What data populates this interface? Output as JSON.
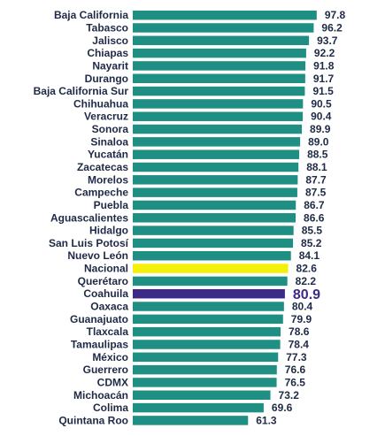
{
  "chart_data": {
    "type": "bar",
    "orientation": "horizontal",
    "title": "",
    "xlabel": "",
    "ylabel": "",
    "xlim": [
      0,
      100
    ],
    "grid": false,
    "categories": [
      "Baja California",
      "Tabasco",
      "Jalisco",
      "Chiapas",
      "Nayarit",
      "Durango",
      "Baja California Sur",
      "Chihuahua",
      "Veracruz",
      "Sonora",
      "Sinaloa",
      "Yucatán",
      "Zacatecas",
      "Morelos",
      "Campeche",
      "Puebla",
      "Aguascalientes",
      "Hidalgo",
      "San Luis Potosí",
      "Nuevo León",
      "Nacional",
      "Querétaro",
      "Coahuila",
      "Oaxaca",
      "Guanajuato",
      "Tlaxcala",
      "Tamaulipas",
      "México",
      "Guerrero",
      "CDMX",
      "Michoacán",
      "Colima",
      "Quintana Roo"
    ],
    "values": [
      97.8,
      96.2,
      93.7,
      92.2,
      91.8,
      91.7,
      91.5,
      90.5,
      90.4,
      89.9,
      89.0,
      88.5,
      88.1,
      87.7,
      87.5,
      86.7,
      86.6,
      85.5,
      85.2,
      84.1,
      82.6,
      82.2,
      80.9,
      80.4,
      79.9,
      78.6,
      78.4,
      77.3,
      76.6,
      76.5,
      73.2,
      69.6,
      61.3
    ],
    "value_labels": [
      "97.8",
      "96.2",
      "93.7",
      "92.2",
      "91.8",
      "91.7",
      "91.5",
      "90.5",
      "90.4",
      "89.9",
      "89.0",
      "88.5",
      "88.1",
      "87.7",
      "87.5",
      "86.7",
      "86.6",
      "85.5",
      "85.2",
      "84.1",
      "82.6",
      "82.2",
      "80.9",
      "80.4",
      "79.9",
      "78.6",
      "78.4",
      "77.3",
      "76.6",
      "76.5",
      "73.2",
      "69.6",
      "61.3"
    ],
    "colors": {
      "default": "#1f8f84",
      "Nacional": "#f5f00a",
      "Coahuila": "#3d2a86"
    },
    "highlight": "Coahuila"
  }
}
